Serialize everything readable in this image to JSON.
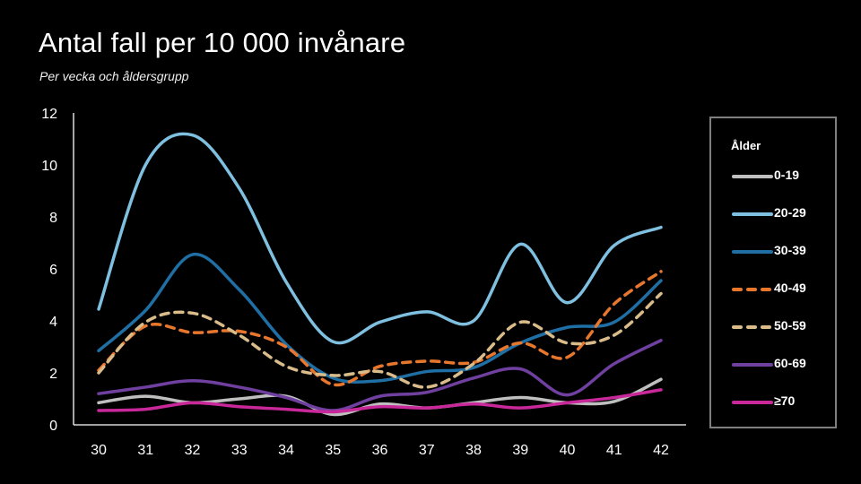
{
  "chart_data": {
    "type": "line",
    "title": "Antal fall per 10 000 invånare",
    "subtitle": "Per vecka och åldersgrupp",
    "xlabel": "",
    "ylabel": "",
    "x": [
      30,
      31,
      32,
      33,
      34,
      35,
      36,
      37,
      38,
      39,
      40,
      41,
      42
    ],
    "ylim": [
      0,
      12
    ],
    "yticks": [
      0,
      2,
      4,
      6,
      8,
      10,
      12
    ],
    "grid": false,
    "legend_title": "Ålder",
    "legend_position": "right",
    "series": [
      {
        "name": "0-19",
        "color": "#bfbfbf",
        "dashed": false,
        "values": [
          0.85,
          1.1,
          0.85,
          1.0,
          1.1,
          0.4,
          0.8,
          0.65,
          0.85,
          1.05,
          0.85,
          0.9,
          1.75
        ]
      },
      {
        "name": "20-29",
        "color": "#7fbfdf",
        "dashed": false,
        "values": [
          4.45,
          10.0,
          11.15,
          9.1,
          5.5,
          3.2,
          3.95,
          4.35,
          4.0,
          6.95,
          4.7,
          6.9,
          7.6
        ]
      },
      {
        "name": "30-39",
        "color": "#1f6fa5",
        "dashed": false,
        "values": [
          2.85,
          4.4,
          6.55,
          5.2,
          3.1,
          1.8,
          1.7,
          2.05,
          2.2,
          3.15,
          3.75,
          3.95,
          5.55
        ]
      },
      {
        "name": "40-49",
        "color": "#e8772e",
        "dashed": true,
        "values": [
          2.1,
          3.8,
          3.55,
          3.6,
          3.0,
          1.55,
          2.25,
          2.45,
          2.4,
          3.15,
          2.6,
          4.65,
          5.9
        ]
      },
      {
        "name": "50-59",
        "color": "#d9bc8a",
        "dashed": true,
        "values": [
          2.0,
          3.95,
          4.3,
          3.45,
          2.25,
          1.9,
          2.05,
          1.45,
          2.35,
          3.95,
          3.15,
          3.45,
          5.05
        ]
      },
      {
        "name": "60-69",
        "color": "#7040a0",
        "dashed": false,
        "values": [
          1.2,
          1.45,
          1.7,
          1.45,
          1.05,
          0.55,
          1.1,
          1.25,
          1.8,
          2.15,
          1.15,
          2.35,
          3.25
        ]
      },
      {
        "name": "≥70",
        "color": "#c8289a",
        "dashed": false,
        "values": [
          0.55,
          0.6,
          0.85,
          0.7,
          0.6,
          0.5,
          0.7,
          0.65,
          0.8,
          0.65,
          0.85,
          1.05,
          1.35
        ]
      }
    ]
  }
}
